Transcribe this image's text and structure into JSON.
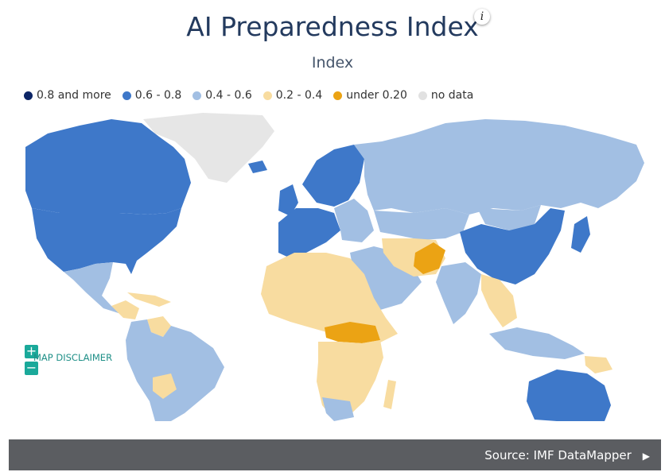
{
  "header": {
    "title": "AI Preparedness Index",
    "subtitle": "Index",
    "info_icon": "i"
  },
  "legend": {
    "items": [
      {
        "label": "0.8 and more",
        "color": "#0c2566"
      },
      {
        "label": "0.6 - 0.8",
        "color": "#3e78c9"
      },
      {
        "label": "0.4 - 0.6",
        "color": "#a2bfe3"
      },
      {
        "label": "0.2 - 0.4",
        "color": "#f8dca0"
      },
      {
        "label": "under 0.20",
        "color": "#eba314"
      },
      {
        "label": "no data",
        "color": "#e1e1e1"
      }
    ]
  },
  "map": {
    "zoom_in": "+",
    "zoom_out": "−",
    "disclaimer": "MAP DISCLAIMER"
  },
  "footer": {
    "source": "Source: IMF DataMapper",
    "play_icon": "▶"
  }
}
